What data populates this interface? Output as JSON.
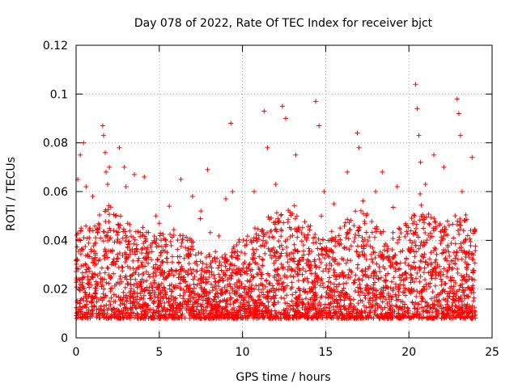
{
  "chart_data": {
    "type": "scatter",
    "title": "Day 078 of 2022, Rate Of TEC Index for receiver bjct",
    "xlabel": "GPS time / hours",
    "ylabel": "ROTI / TECUs",
    "xlim": [
      0,
      25
    ],
    "ylim": [
      0,
      0.12
    ],
    "x_ticks": [
      "0",
      "5",
      "10",
      "15",
      "20",
      "25"
    ],
    "y_ticks": [
      "0",
      "0.02",
      "0.04",
      "0.06",
      "0.08",
      "0.1",
      "0.12"
    ],
    "grid": true,
    "marker": "+",
    "color": "#ff0000",
    "series": [
      {
        "x": [
          0.25,
          0.45,
          0.6,
          1.6,
          1.65,
          1.75,
          1.8,
          1.9,
          2.6,
          2.9,
          3.5,
          4.1,
          4.8,
          5.6,
          6.3,
          7.0,
          7.9,
          9.3,
          9.4,
          10.7,
          11.3,
          11.5,
          12.4,
          12.6,
          13.2,
          14.4,
          14.6,
          14.9,
          16.3,
          16.9,
          17.0,
          18.4,
          19.3,
          20.4,
          20.5,
          20.6,
          20.7,
          21.5,
          22.1,
          22.9,
          23.0,
          23.1,
          23.2,
          23.8,
          0.1,
          0.3,
          1.0,
          2.0,
          3.0,
          5.0,
          7.5,
          9.0,
          12.0,
          15.5,
          18.0,
          21.0
        ],
        "y": [
          0.075,
          0.08,
          0.062,
          0.087,
          0.083,
          0.076,
          0.068,
          0.063,
          0.078,
          0.07,
          0.067,
          0.066,
          0.05,
          0.054,
          0.065,
          0.058,
          0.069,
          0.088,
          0.06,
          0.06,
          0.093,
          0.078,
          0.095,
          0.09,
          0.075,
          0.097,
          0.087,
          0.06,
          0.068,
          0.084,
          0.078,
          0.068,
          0.062,
          0.104,
          0.094,
          0.083,
          0.072,
          0.075,
          0.07,
          0.098,
          0.092,
          0.083,
          0.06,
          0.074,
          0.065,
          0.045,
          0.058,
          0.07,
          0.062,
          0.047,
          0.052,
          0.057,
          0.063,
          0.055,
          0.06,
          0.063
        ]
      }
    ]
  }
}
